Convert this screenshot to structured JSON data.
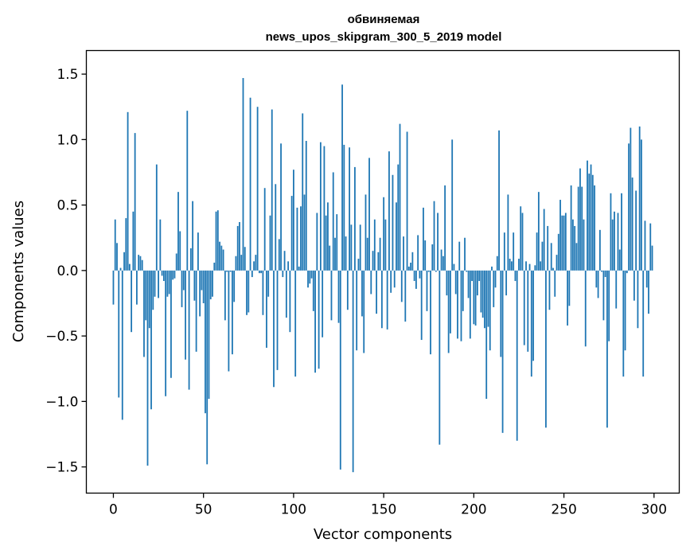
{
  "chart_data": {
    "type": "bar",
    "title_lines": [
      "обвиняемая",
      "news_upos_skipgram_300_5_2019 model"
    ],
    "xlabel": "Vector components",
    "ylabel": "Components values",
    "xlim": [
      -15,
      314
    ],
    "ylim": [
      -1.7,
      1.68
    ],
    "xticks": [
      0,
      50,
      100,
      150,
      200,
      250,
      300
    ],
    "yticks": [
      -1.5,
      -1.0,
      -0.5,
      0.0,
      0.5,
      1.0,
      1.5
    ],
    "ytick_labels": [
      "−1.5",
      "−1.0",
      "−0.5",
      "0.0",
      "0.5",
      "1.0",
      "1.5"
    ],
    "bar_color": "#1f77b4",
    "x_start": 0,
    "values": [
      -0.26,
      0.39,
      0.21,
      -0.97,
      0.02,
      -1.14,
      0.14,
      0.4,
      1.21,
      0.05,
      -0.47,
      0.45,
      1.05,
      -0.26,
      0.12,
      0.11,
      0.08,
      -0.66,
      -0.38,
      -1.49,
      -0.44,
      -1.06,
      -0.3,
      -0.2,
      0.81,
      -0.21,
      0.39,
      -0.04,
      -0.08,
      -0.96,
      -0.2,
      -0.18,
      -0.82,
      -0.07,
      -0.06,
      0.13,
      0.6,
      0.3,
      -0.28,
      -0.15,
      -0.68,
      1.22,
      -0.91,
      0.17,
      0.53,
      -0.23,
      -0.62,
      0.29,
      -0.35,
      -0.15,
      -0.25,
      -1.09,
      -1.48,
      -0.98,
      -0.22,
      -0.2,
      0.06,
      0.45,
      0.46,
      0.22,
      0.19,
      0.16,
      -0.38,
      -0.01,
      -0.77,
      -0.01,
      -0.64,
      -0.24,
      0.11,
      0.34,
      0.37,
      0.12,
      1.47,
      0.18,
      -0.34,
      -0.32,
      1.32,
      -0.05,
      0.07,
      0.12,
      1.25,
      -0.02,
      -0.02,
      -0.34,
      0.63,
      -0.59,
      -0.2,
      0.42,
      1.23,
      -0.89,
      0.66,
      -0.76,
      0.24,
      0.97,
      -0.05,
      0.15,
      -0.36,
      0.07,
      -0.47,
      0.57,
      0.77,
      -0.81,
      0.48,
      0.03,
      0.49,
      1.2,
      0.58,
      0.99,
      -0.13,
      -0.1,
      -0.06,
      -0.31,
      -0.78,
      0.44,
      -0.75,
      0.98,
      -0.51,
      0.95,
      0.42,
      0.52,
      0.19,
      -0.38,
      0.75,
      0.25,
      0.43,
      -0.4,
      -1.52,
      1.42,
      0.96,
      0.26,
      -0.3,
      0.94,
      0.35,
      -1.54,
      0.79,
      -0.61,
      0.09,
      0.35,
      -0.35,
      -0.63,
      0.58,
      0.25,
      0.86,
      -0.18,
      0.15,
      0.39,
      -0.33,
      0.14,
      0.25,
      -0.44,
      0.56,
      0.39,
      -0.45,
      0.91,
      -0.17,
      0.73,
      -0.13,
      0.52,
      0.81,
      1.12,
      -0.24,
      0.26,
      -0.39,
      1.06,
      0.03,
      0.06,
      0.14,
      -0.08,
      -0.14,
      0.27,
      -0.06,
      -0.53,
      0.48,
      0.23,
      -0.31,
      -0.01,
      -0.64,
      0.2,
      0.53,
      -0.01,
      0.44,
      -1.33,
      0.16,
      0.11,
      0.65,
      -0.19,
      -0.63,
      -0.48,
      1.0,
      0.05,
      -0.18,
      -0.52,
      0.22,
      -0.54,
      -0.31,
      0.25,
      -0.01,
      -0.21,
      -0.52,
      -0.08,
      -0.41,
      -0.42,
      -0.19,
      -0.08,
      -0.32,
      -0.36,
      -0.44,
      -0.98,
      -0.43,
      -0.61,
      0.03,
      -0.28,
      -0.13,
      0.11,
      1.07,
      -0.66,
      -1.24,
      0.29,
      -0.19,
      0.58,
      0.09,
      0.07,
      0.29,
      -0.08,
      -1.3,
      0.09,
      0.49,
      0.44,
      -0.57,
      0.07,
      -0.62,
      0.05,
      -0.81,
      -0.69,
      0.04,
      0.29,
      0.6,
      0.07,
      0.22,
      0.47,
      -1.2,
      0.34,
      -0.3,
      0.21,
      0.02,
      -0.2,
      0.12,
      0.28,
      0.54,
      0.42,
      0.42,
      0.44,
      -0.42,
      -0.27,
      0.65,
      0.39,
      0.34,
      0.21,
      0.64,
      0.78,
      0.64,
      0.39,
      -0.58,
      0.84,
      0.74,
      0.81,
      0.73,
      0.65,
      -0.13,
      -0.21,
      0.31,
      -0.01,
      -0.38,
      -0.05,
      -1.2,
      -0.54,
      0.59,
      0.39,
      0.45,
      -0.29,
      0.44,
      0.16,
      0.59,
      -0.81,
      -0.61,
      -0.02,
      0.97,
      1.09,
      0.71,
      -0.23,
      0.61,
      -0.44,
      1.1,
      1.0,
      -0.81,
      0.38,
      -0.13,
      -0.33,
      0.36,
      0.19
    ]
  }
}
